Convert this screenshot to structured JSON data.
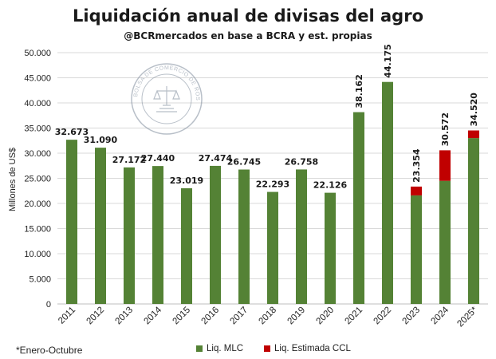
{
  "chart_data": {
    "type": "bar",
    "stacked": true,
    "title": "Liquidación anual de divisas del agro",
    "subtitle": "@BCRmercados en base a BCRA y est. propias",
    "ylabel": "Millones de US$",
    "xlabel": "",
    "ylim": [
      0,
      50000
    ],
    "yticks": [
      "0",
      "5.000",
      "10.000",
      "15.000",
      "20.000",
      "25.000",
      "30.000",
      "35.000",
      "40.000",
      "45.000",
      "50.000"
    ],
    "grid": true,
    "legend_position": "bottom",
    "categories": [
      "2011",
      "2012",
      "2013",
      "2014",
      "2015",
      "2016",
      "2017",
      "2018",
      "2019",
      "2020",
      "2021",
      "2022",
      "2023",
      "2024",
      "2025*"
    ],
    "series": [
      {
        "name": "Liq. MLC",
        "color": "#548235",
        "values": [
          32673,
          31090,
          27172,
          27440,
          23019,
          27474,
          26745,
          22293,
          26758,
          22126,
          38162,
          44175,
          21600,
          24500,
          33000
        ]
      },
      {
        "name": "Liq. Estimada CCL",
        "color": "#c00000",
        "values": [
          0,
          0,
          0,
          0,
          0,
          0,
          0,
          0,
          0,
          0,
          0,
          0,
          1754,
          6072,
          1520
        ]
      }
    ],
    "data_labels": [
      "32.673",
      "31.090",
      "27.172",
      "27.440",
      "23.019",
      "27.474",
      "26.745",
      "22.293",
      "26.758",
      "22.126",
      "38.162",
      "44.175",
      "23.354",
      "30.572",
      "34.520"
    ],
    "rotated_labels": [
      false,
      false,
      false,
      false,
      false,
      false,
      false,
      false,
      false,
      false,
      true,
      true,
      true,
      true,
      true
    ],
    "footnote": "*Enero-Octubre"
  },
  "watermark": {
    "text": "BOLSA DE COMERCIO DE ROSARIO"
  }
}
